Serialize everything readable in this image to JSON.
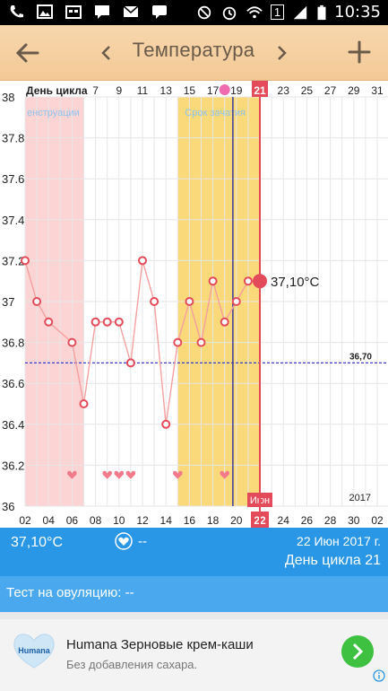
{
  "status_bar": {
    "time": "10:35",
    "sim_number": "1",
    "icons": [
      "phone-icon",
      "image-icon",
      "calendar-icon",
      "sms-icon",
      "mail-icon",
      "chat-icon",
      "mute-icon",
      "alarm-icon",
      "wifi-icon",
      "signal-icon",
      "battery-icon"
    ]
  },
  "appbar": {
    "title": "Температура",
    "icons": [
      "back-arrow-icon",
      "chevron-left-icon",
      "chevron-right-icon",
      "plus-icon"
    ]
  },
  "chart_data": {
    "type": "line",
    "top_axis_label": "День цикла",
    "cycle_day_ticks": [
      "7",
      "9",
      "11",
      "13",
      "15",
      "17",
      "19",
      "21",
      "23",
      "25",
      "27",
      "29",
      "31"
    ],
    "current_cycle_day": "21",
    "date_ticks": [
      "02",
      "04",
      "06",
      "08",
      "10",
      "12",
      "14",
      "16",
      "18",
      "20",
      "22",
      "24",
      "26",
      "28",
      "30",
      "02"
    ],
    "month_label": "Июн",
    "current_date_tick": "22",
    "year_label": "2017",
    "y_ticks": [
      "36",
      "36.2",
      "36.4",
      "36.6",
      "36.8",
      "37",
      "37.2",
      "37.4",
      "37.6",
      "37.8",
      "38"
    ],
    "ylim": [
      36,
      38
    ],
    "menstruation_band": {
      "label": "енструации",
      "from_day": 1,
      "to_day": 6,
      "color": "#fcd4d4"
    },
    "fertile_band": {
      "label": "Срок зачатия",
      "from_day": 14,
      "to_day": 21,
      "color": "#fad97a"
    },
    "series": [
      {
        "days": [
          1,
          2,
          3,
          5,
          6,
          7,
          8,
          9,
          10,
          11,
          12,
          13,
          14,
          15,
          16,
          17,
          18,
          19,
          20
        ],
        "values": [
          37.2,
          37.0,
          36.9,
          36.8,
          36.5,
          36.9,
          36.9,
          36.9,
          36.7,
          37.2,
          37.0,
          36.4,
          36.8,
          37.0,
          36.8,
          37.1,
          36.9,
          37.0,
          37.1
        ]
      }
    ],
    "current_point": {
      "day": 21,
      "value": 37.1,
      "label": "37,10°C"
    },
    "baseline": {
      "value": 36.7,
      "label": "36,70"
    },
    "heart_days": [
      5,
      8,
      9,
      10,
      14,
      18
    ],
    "ovulation_day_line": 18.7,
    "colors": {
      "line": "#f4a0a0",
      "marker": "#e34a5a",
      "current": "#e34a5a",
      "baseline": "#3a3acb",
      "ovulation_line": "#3b3b9b"
    }
  },
  "info_bar": {
    "temperature": "37,10°C",
    "heart_value": "--",
    "date": "22 Июн 2017 г.",
    "cycle_day": "День цикла 21"
  },
  "ovulation_test": {
    "label": "Тест на овуляцию: --"
  },
  "ad": {
    "logo_text": "Humana",
    "headline": "Humana Зерновые крем-каши",
    "subtitle": "Без добавления сахара."
  }
}
